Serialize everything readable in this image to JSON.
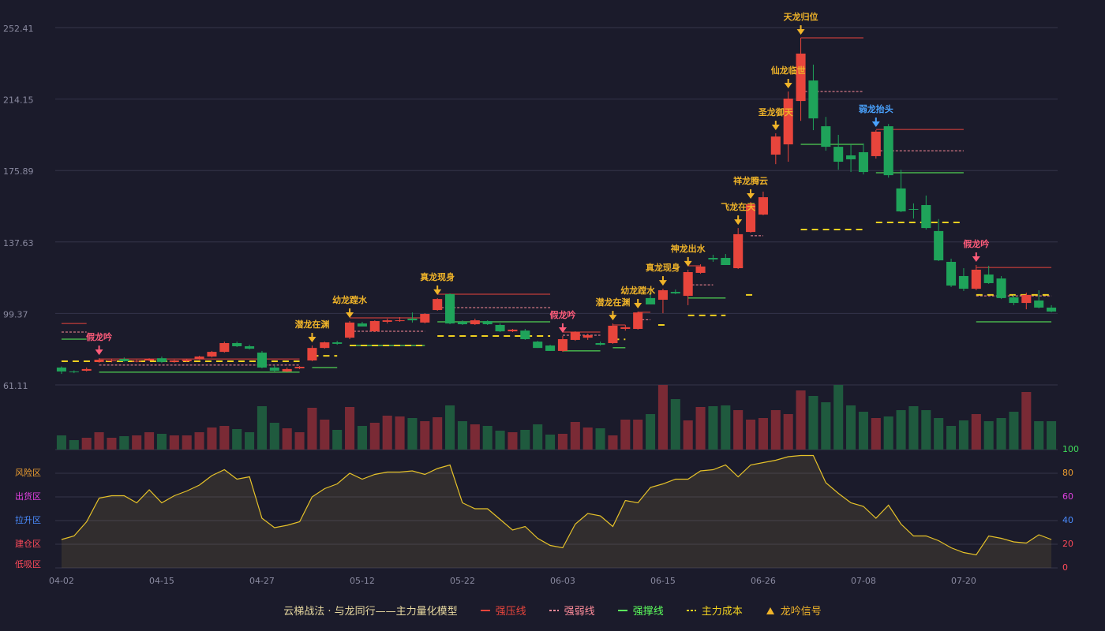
{
  "chart_data": {
    "type": "candlestick",
    "categories": [
      "04-02",
      null,
      null,
      null,
      null,
      null,
      null,
      null,
      "04-15",
      null,
      null,
      null,
      null,
      null,
      null,
      null,
      "04-27",
      null,
      null,
      null,
      null,
      null,
      null,
      null,
      "05-12",
      null,
      null,
      null,
      null,
      null,
      null,
      null,
      "05-22",
      null,
      null,
      null,
      null,
      null,
      null,
      null,
      "06-03",
      null,
      null,
      null,
      null,
      null,
      null,
      null,
      "06-15",
      null,
      null,
      null,
      null,
      null,
      null,
      null,
      "06-26",
      null,
      null,
      null,
      null,
      null,
      null,
      null,
      "07-08",
      null,
      null,
      null,
      null,
      null,
      null,
      null,
      "07-20",
      null,
      null,
      null,
      null,
      null,
      null,
      null
    ],
    "open": [
      70.4,
      68.3,
      68.7,
      73.4,
      73.8,
      75.0,
      73.6,
      74.2,
      75.4,
      73.4,
      73.8,
      75.0,
      76.3,
      78.8,
      83.5,
      81.8,
      78.4,
      70.4,
      68.3,
      70.0,
      74.2,
      80.9,
      83.9,
      86.4,
      94.0,
      89.8,
      94.9,
      95.3,
      96.6,
      94.5,
      101.2,
      109.7,
      94.9,
      93.6,
      95.3,
      93.2,
      89.8,
      90.2,
      84.3,
      82.2,
      79.3,
      85.2,
      86.4,
      83.5,
      83.5,
      91.1,
      91.1,
      107.6,
      106.7,
      110.9,
      108.8,
      121.1,
      129.1,
      129.1,
      123.6,
      143.0,
      152.3,
      184.4,
      189.9,
      213.1,
      224.1,
      199.6,
      188.6,
      184.0,
      185.7,
      183.6,
      199.6,
      166.3,
      155.3,
      157.4,
      143.5,
      127.0,
      119.4,
      112.6,
      120.2,
      118.1,
      108.0,
      105.0,
      106.3,
      102.5
    ],
    "high": [
      71.0,
      68.9,
      70.4,
      75.4,
      74.8,
      75.8,
      74.6,
      75.4,
      76.3,
      74.6,
      75.0,
      76.7,
      79.3,
      84.3,
      84.3,
      82.6,
      79.3,
      71.6,
      70.4,
      71.2,
      82.2,
      84.3,
      84.7,
      95.3,
      94.9,
      95.7,
      96.6,
      97.4,
      99.9,
      99.5,
      107.6,
      110.1,
      95.7,
      96.6,
      95.7,
      94.0,
      91.1,
      91.1,
      84.7,
      82.6,
      87.3,
      89.8,
      88.5,
      84.3,
      94.0,
      93.2,
      100.4,
      111.0,
      112.6,
      112.2,
      122.8,
      125.7,
      130.8,
      131.2,
      145.1,
      159.1,
      164.6,
      195.8,
      218.2,
      246.9,
      232.6,
      204.6,
      195.0,
      189.9,
      190.4,
      197.5,
      200.8,
      176.3,
      158.3,
      162.5,
      149.9,
      128.7,
      123.6,
      125.3,
      124.9,
      119.4,
      109.3,
      110.5,
      111.8,
      103.8
    ],
    "low": [
      67.0,
      67.4,
      68.3,
      73.0,
      73.2,
      73.6,
      73.2,
      73.8,
      73.0,
      73.0,
      73.4,
      74.6,
      75.8,
      78.4,
      81.4,
      80.1,
      70.0,
      68.3,
      67.9,
      69.6,
      73.8,
      80.5,
      82.6,
      85.6,
      92.4,
      89.4,
      94.0,
      94.9,
      94.5,
      94.0,
      100.8,
      93.6,
      93.2,
      93.2,
      93.2,
      89.4,
      89.4,
      85.2,
      80.9,
      79.3,
      78.8,
      84.7,
      85.2,
      82.2,
      83.1,
      90.2,
      90.7,
      104.2,
      99.5,
      109.7,
      103.8,
      120.6,
      127.0,
      125.3,
      123.2,
      142.6,
      151.9,
      179.3,
      180.6,
      202.5,
      197.5,
      186.5,
      176.3,
      175.1,
      173.8,
      182.3,
      172.1,
      153.6,
      150.2,
      144.3,
      127.4,
      113.5,
      111.4,
      111.8,
      115.2,
      107.1,
      103.8,
      101.6,
      102.1,
      100.0
    ],
    "close": [
      68.3,
      67.9,
      69.6,
      74.6,
      74.2,
      73.8,
      74.0,
      75.0,
      73.4,
      74.2,
      74.6,
      76.3,
      78.8,
      83.5,
      81.8,
      80.5,
      70.4,
      68.7,
      69.6,
      70.8,
      80.9,
      83.9,
      83.1,
      94.5,
      92.4,
      95.3,
      95.7,
      95.7,
      95.7,
      99.1,
      107.1,
      94.0,
      93.6,
      95.7,
      93.6,
      89.8,
      90.7,
      85.6,
      80.9,
      79.3,
      85.6,
      89.4,
      87.7,
      82.6,
      92.8,
      92.0,
      99.9,
      104.2,
      111.8,
      110.1,
      121.5,
      124.5,
      128.3,
      125.3,
      141.8,
      157.8,
      161.6,
      194.1,
      214.4,
      238.5,
      203.8,
      188.6,
      180.6,
      181.9,
      175.1,
      196.7,
      173.4,
      154.0,
      154.9,
      145.1,
      127.8,
      114.3,
      112.6,
      122.8,
      115.6,
      107.6,
      105.0,
      109.3,
      102.5,
      100.4
    ],
    "up_color": "#e8453c",
    "down_color": "#1fa35a",
    "volume": [
      18,
      12,
      15,
      22,
      15,
      17,
      18,
      22,
      20,
      18,
      18,
      22,
      28,
      30,
      26,
      22,
      55,
      34,
      27,
      22,
      53,
      38,
      25,
      54,
      30,
      34,
      43,
      42,
      40,
      36,
      41,
      56,
      36,
      32,
      30,
      24,
      22,
      25,
      32,
      19,
      20,
      35,
      28,
      27,
      18,
      38,
      38,
      45,
      82,
      64,
      37,
      54,
      55,
      56,
      50,
      38,
      40,
      50,
      45,
      75,
      68,
      60,
      82,
      56,
      48,
      40,
      42,
      50,
      55,
      50,
      40,
      30,
      37,
      45,
      36,
      40,
      48,
      73,
      36,
      36
    ],
    "volume_up_color": "#7a2a35",
    "volume_down_color": "#1f5a3e",
    "ylim": [
      61.11,
      252.41
    ],
    "yticks": [
      61.11,
      99.37,
      137.63,
      175.89,
      214.15,
      252.41
    ],
    "grid": true,
    "oscillator": {
      "values": [
        24,
        27,
        39,
        59,
        61,
        61,
        55,
        66,
        55,
        61,
        65,
        70,
        78,
        83,
        75,
        77,
        42,
        34,
        36,
        39,
        60,
        67,
        71,
        80,
        75,
        79,
        81,
        81,
        82,
        79,
        84,
        87,
        55,
        50,
        50,
        41,
        32,
        35,
        25,
        19,
        17,
        37,
        46,
        44,
        35,
        57,
        55,
        68,
        71,
        75,
        75,
        82,
        83,
        87,
        77,
        87,
        89,
        91,
        94,
        95,
        95,
        72,
        63,
        55,
        52,
        42,
        53,
        37,
        27,
        27,
        23,
        17,
        13,
        11,
        27,
        25,
        22,
        21,
        28,
        24
      ],
      "color": "#e6c229",
      "y2lim": [
        0,
        100
      ],
      "y2ticks": [
        0,
        20,
        40,
        60,
        80,
        100
      ],
      "tick_colors": [
        "#ff4a5a",
        "#ff4a5a",
        "#4a8cff",
        "#e040e0",
        "#f0a030",
        "#3fdc5a"
      ],
      "zones": [
        {
          "label": "风险区",
          "value": 80,
          "color": "#f0a030"
        },
        {
          "label": "出货区",
          "value": 60,
          "color": "#e040e0"
        },
        {
          "label": "拉升区",
          "value": 40,
          "color": "#4a8cff"
        },
        {
          "label": "建仓区",
          "value": 20,
          "color": "#ff4a5a"
        },
        {
          "label": "低吸区",
          "value": 0,
          "color": "#ff4a5a"
        }
      ]
    },
    "signals": [
      {
        "label": "假龙吟",
        "index": 3,
        "color": "#ff5c7a"
      },
      {
        "label": "潜龙在渊",
        "index": 20,
        "color": "#f0b429"
      },
      {
        "label": "幼龙蹚水",
        "index": 23,
        "color": "#f0b429"
      },
      {
        "label": "真龙现身",
        "index": 30,
        "color": "#f0b429"
      },
      {
        "label": "假龙吟",
        "index": 40,
        "color": "#ff5c7a"
      },
      {
        "label": "潜龙在渊",
        "index": 44,
        "color": "#f0b429"
      },
      {
        "label": "幼龙蹚水",
        "index": 46,
        "color": "#f0b429"
      },
      {
        "label": "真龙现身",
        "index": 48,
        "color": "#f0b429"
      },
      {
        "label": "神龙出水",
        "index": 50,
        "color": "#f0b429"
      },
      {
        "label": "飞龙在天",
        "index": 54,
        "color": "#f0b429"
      },
      {
        "label": "祥龙腾云",
        "index": 55,
        "color": "#f0b429"
      },
      {
        "label": "圣龙御天",
        "index": 57,
        "color": "#f0b429"
      },
      {
        "label": "仙龙临世",
        "index": 58,
        "color": "#f0b429"
      },
      {
        "label": "天龙归位",
        "index": 59,
        "color": "#f0b429"
      },
      {
        "label": "弱龙抬头",
        "index": 65,
        "color": "#4aa3ff"
      },
      {
        "label": "假龙吟",
        "index": 73,
        "color": "#ff5c7a"
      }
    ],
    "legend": {
      "title": "云梯战法 · 与龙同行——主力量化模型",
      "items": [
        {
          "name": "强压线",
          "color": "#e8453c",
          "dashed": false,
          "segments": [
            [
              0,
              2,
              94.0
            ],
            [
              3,
              19,
              75.0
            ],
            [
              23,
              29,
              97.0
            ],
            [
              30,
              39,
              109.7
            ],
            [
              40,
              43,
              89.4
            ],
            [
              44,
              45,
              93.2
            ],
            [
              46,
              47,
              100.0
            ],
            [
              50,
              51,
              124.9
            ],
            [
              59,
              64,
              246.9
            ],
            [
              65,
              72,
              197.9
            ],
            [
              73,
              79,
              124.0
            ]
          ]
        },
        {
          "name": "强弱线",
          "color": "#ff8c9a",
          "dashed": true,
          "segments": [
            [
              0,
              2,
              89.4
            ],
            [
              3,
              19,
              71.7
            ],
            [
              23,
              29,
              89.8
            ],
            [
              30,
              39,
              102.5
            ],
            [
              40,
              43,
              87.7
            ],
            [
              46,
              47,
              96.0
            ],
            [
              50,
              52,
              114.7
            ],
            [
              55,
              56,
              141.0
            ],
            [
              59,
              64,
              218.2
            ],
            [
              65,
              72,
              186.5
            ],
            [
              73,
              79,
              108.8
            ]
          ]
        },
        {
          "name": "强撑线",
          "color": "#5cff5c",
          "dashed": false,
          "segments": [
            [
              0,
              2,
              85.6
            ],
            [
              3,
              19,
              67.9
            ],
            [
              20,
              22,
              70.4
            ],
            [
              23,
              29,
              82.2
            ],
            [
              30,
              39,
              94.9
            ],
            [
              40,
              43,
              79.3
            ],
            [
              44,
              45,
              81.0
            ],
            [
              50,
              53,
              107.6
            ],
            [
              54,
              54,
              124.5
            ],
            [
              59,
              64,
              189.9
            ],
            [
              65,
              72,
              174.7
            ],
            [
              73,
              79,
              94.9
            ]
          ]
        },
        {
          "name": "主力成本",
          "color": "#f0d020",
          "dashed": true,
          "segments": [
            [
              0,
              19,
              73.8
            ],
            [
              20,
              22,
              76.7
            ],
            [
              23,
              29,
              82.2
            ],
            [
              30,
              39,
              87.3
            ],
            [
              44,
              45,
              85.5
            ],
            [
              48,
              48,
              93.2
            ],
            [
              50,
              53,
              98.3
            ],
            [
              55,
              55,
              109.3
            ],
            [
              59,
              64,
              144.3
            ],
            [
              65,
              72,
              148.1
            ],
            [
              73,
              79,
              109.3
            ]
          ]
        },
        {
          "name": "龙吟信号",
          "color": "#f0b429",
          "marker": true
        }
      ]
    }
  }
}
